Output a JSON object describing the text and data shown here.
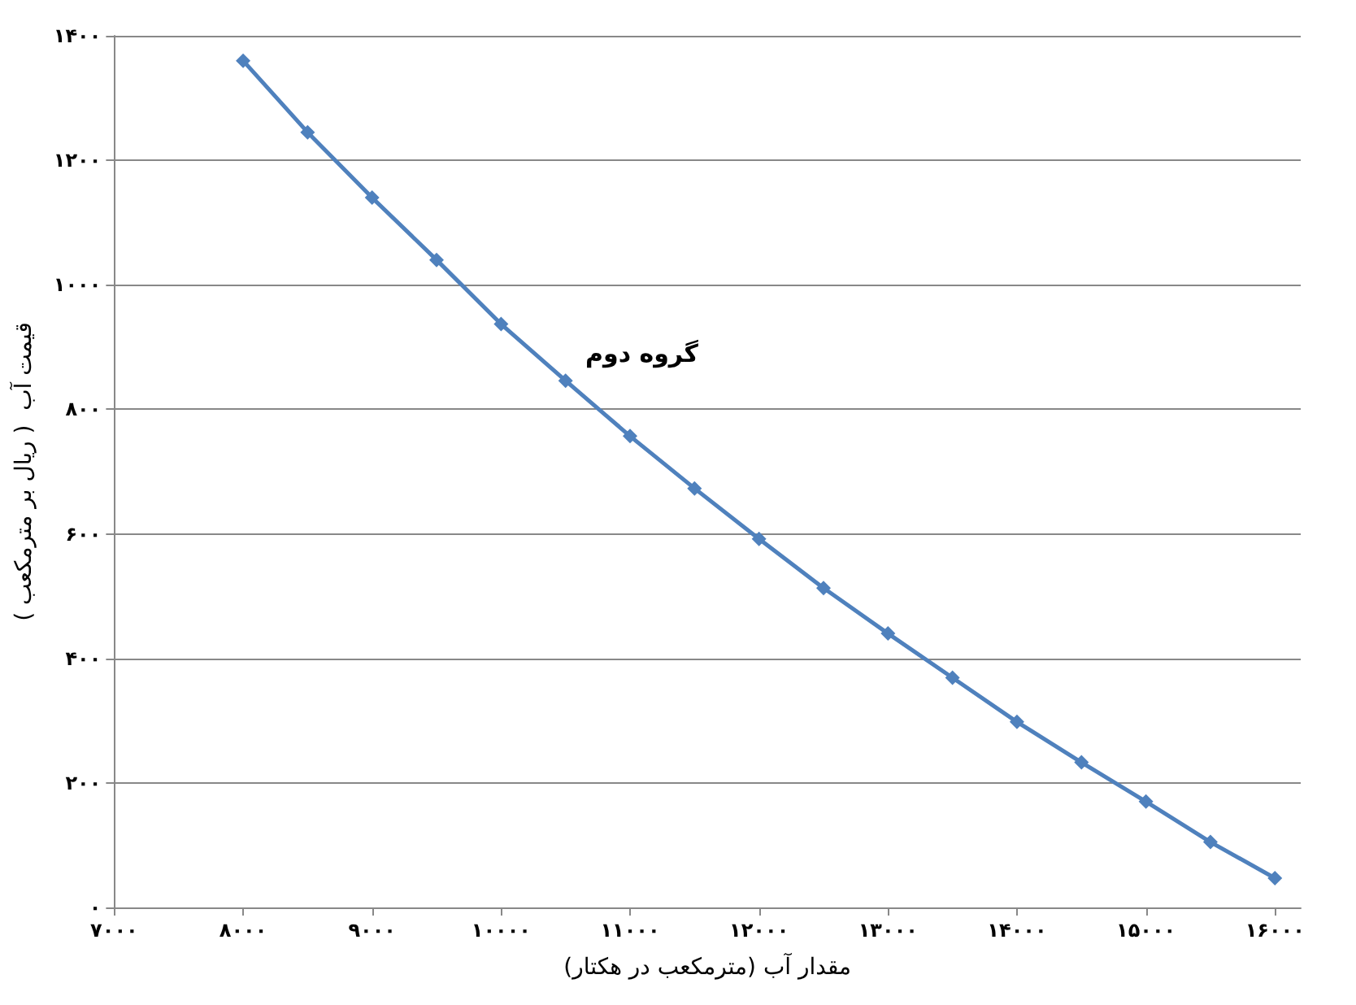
{
  "chart_data": {
    "type": "line",
    "xlabel": "مقدار آب (مترمکعب در هکتار)",
    "ylabel": "قیمت آب  ( ریال بر مترمکعب )",
    "annotations": [
      "گروه دوم"
    ],
    "x": [
      8000,
      8500,
      9000,
      9500,
      10000,
      10500,
      11000,
      11500,
      12000,
      12500,
      13000,
      13500,
      14000,
      14500,
      15000,
      15500,
      16000
    ],
    "series": [
      {
        "color": "#4f81bd",
        "values": [
          1360,
          1245,
          1140,
          1040,
          937,
          846,
          757,
          673,
          592,
          513,
          440,
          369,
          298,
          233,
          170,
          105,
          47
        ]
      }
    ],
    "xlim": [
      7000,
      16200
    ],
    "xticks": [
      {
        "value": 7000,
        "label": "۷۰۰۰"
      },
      {
        "value": 8000,
        "label": "۸۰۰۰"
      },
      {
        "value": 9000,
        "label": "۹۰۰۰"
      },
      {
        "value": 10000,
        "label": "۱۰۰۰۰"
      },
      {
        "value": 11000,
        "label": "۱۱۰۰۰"
      },
      {
        "value": 12000,
        "label": "۱۲۰۰۰"
      },
      {
        "value": 13000,
        "label": "۱۳۰۰۰"
      },
      {
        "value": 14000,
        "label": "۱۴۰۰۰"
      },
      {
        "value": 15000,
        "label": "۱۵۰۰۰"
      },
      {
        "value": 16000,
        "label": "۱۶۰۰۰"
      }
    ],
    "ylim": [
      0,
      1400
    ],
    "yticks": [
      {
        "value": 0,
        "label": "۰"
      },
      {
        "value": 200,
        "label": "۲۰۰"
      },
      {
        "value": 400,
        "label": "۴۰۰"
      },
      {
        "value": 600,
        "label": "۶۰۰"
      },
      {
        "value": 800,
        "label": "۸۰۰"
      },
      {
        "value": 1000,
        "label": "۱۰۰۰"
      },
      {
        "value": 1200,
        "label": "۱۲۰۰"
      },
      {
        "value": 1400,
        "label": "۱۴۰۰"
      }
    ],
    "grid": "y",
    "marker": "diamond",
    "line_style": "solid"
  }
}
